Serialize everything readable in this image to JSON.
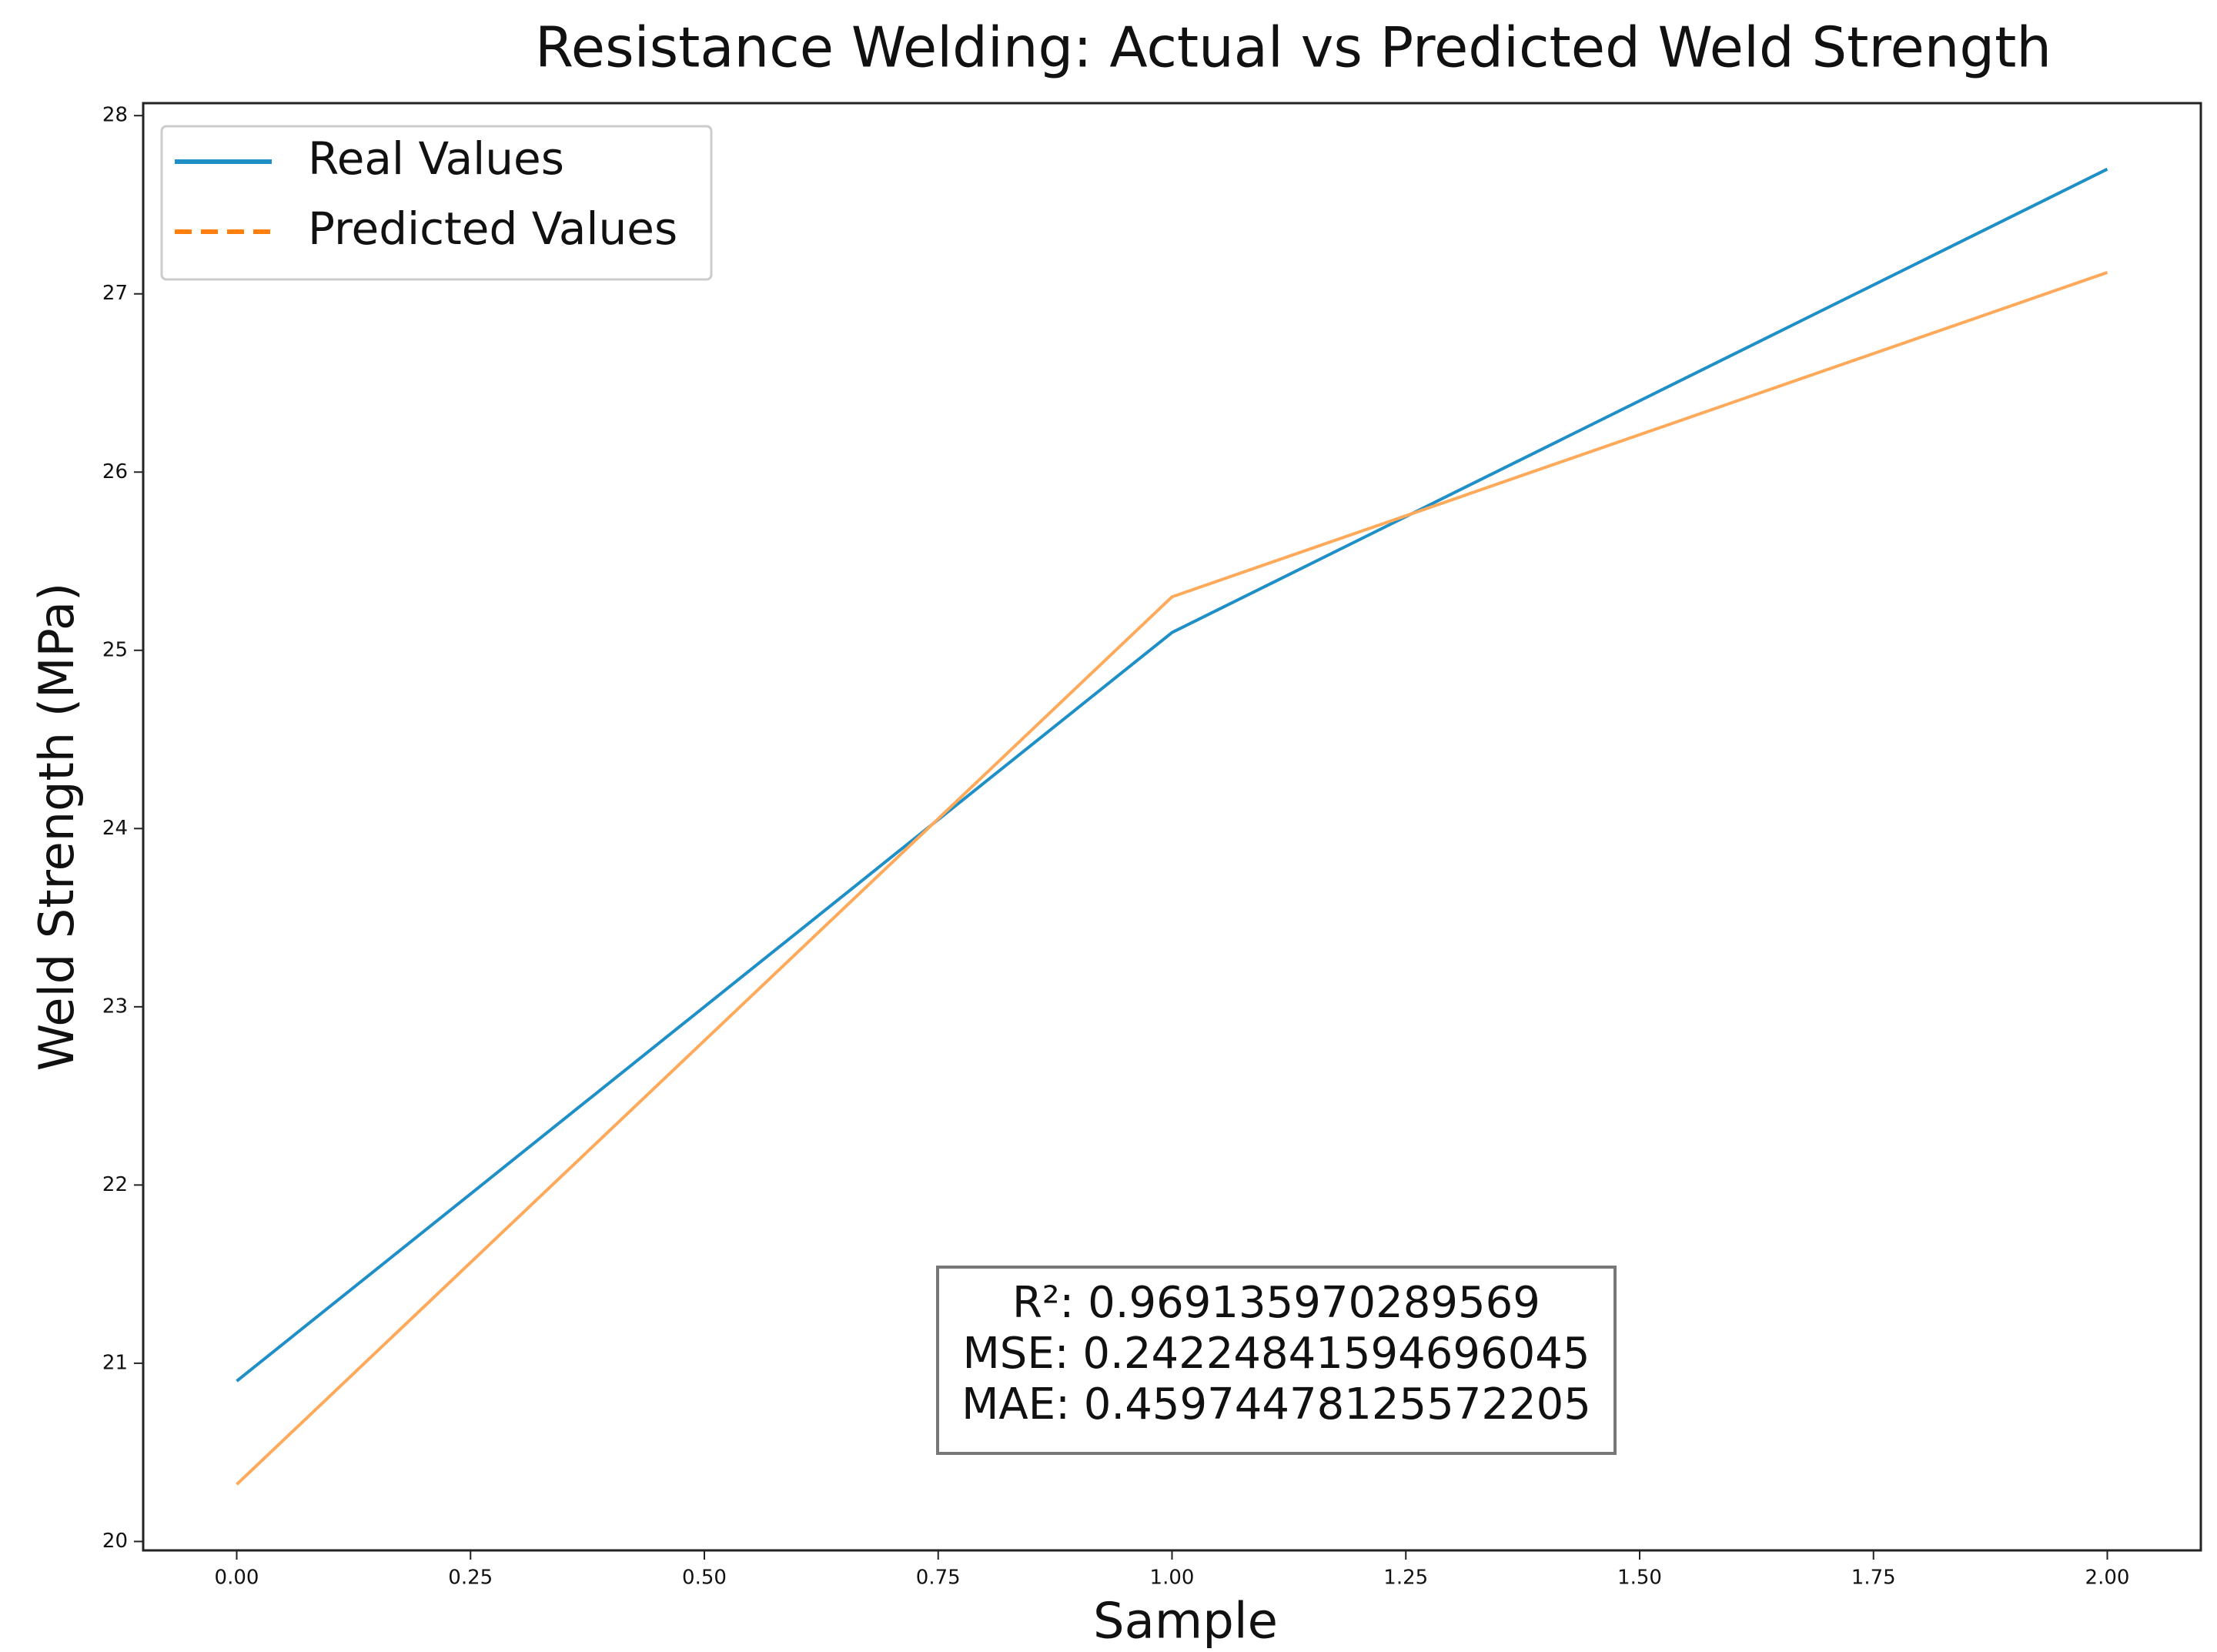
{
  "chart_data": {
    "type": "line",
    "title": "Resistance Welding: Actual vs Predicted Weld Strength",
    "x_label": "Sample",
    "y_label": "Weld Strength (MPa)",
    "x": [
      0,
      1,
      2
    ],
    "series": [
      {
        "name": "Real Values",
        "color": "#1f8fc8",
        "values": [
          20.9,
          25.1,
          27.7
        ]
      },
      {
        "name": "Predicted Values",
        "color": "#ffa95a",
        "legend_color": "#ff7f0e",
        "legend_dashed": true,
        "values": [
          20.32,
          25.3,
          27.12
        ]
      }
    ],
    "xlim": [
      -0.1,
      2.1
    ],
    "xticks": [
      {
        "value": 0,
        "label": "0.00"
      },
      {
        "value": 0.25,
        "label": "0.25"
      },
      {
        "value": 0.5,
        "label": "0.50"
      },
      {
        "value": 0.75,
        "label": "0.75"
      },
      {
        "value": 1,
        "label": "1.00"
      },
      {
        "value": 1.25,
        "label": "1.25"
      },
      {
        "value": 1.5,
        "label": "1.50"
      },
      {
        "value": 1.75,
        "label": "1.75"
      },
      {
        "value": 2,
        "label": "2.00"
      }
    ],
    "ylim": [
      19.95,
      28.07
    ],
    "yticks": [
      20,
      21,
      22,
      23,
      24,
      25,
      26,
      27,
      28
    ],
    "grid": false,
    "legend": "upper left",
    "annotation": [
      "R²: 0.969135970289569",
      "MSE: 0.24224841594696045",
      "MAE: 0.45974478125572205"
    ]
  }
}
